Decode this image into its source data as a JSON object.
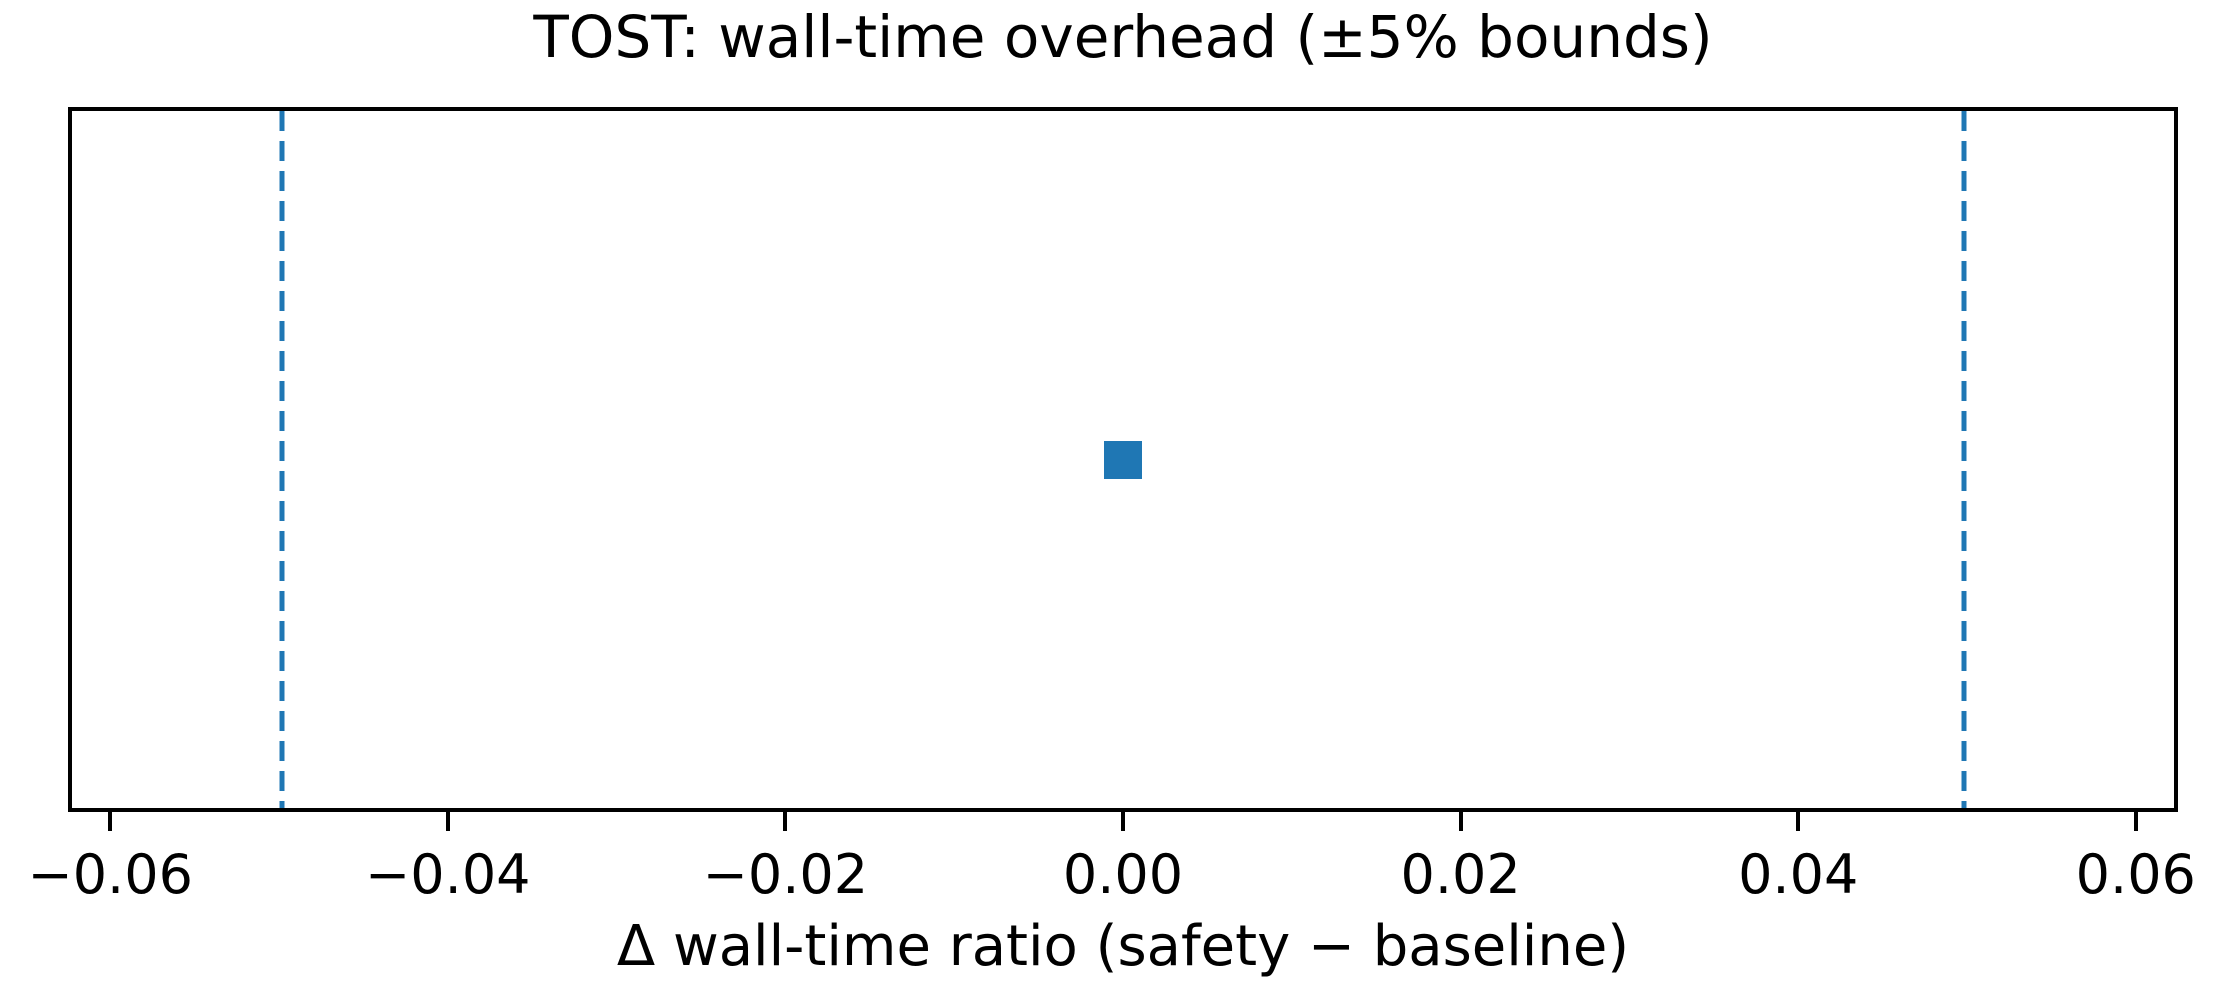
{
  "chart_data": {
    "type": "scatter",
    "title": "TOST: wall-time overhead (±5% bounds)",
    "xlabel": "Δ wall-time ratio (safety − baseline)",
    "ylabel": "",
    "points": [
      {
        "x": 0.0,
        "y": 0.0
      }
    ],
    "marker": "square",
    "marker_color": "#1f77b4",
    "equivalence_bounds": {
      "lower": -0.05,
      "upper": 0.05,
      "line_style": "dashed",
      "line_color": "#1f77b4"
    },
    "xlim": [
      -0.0625,
      0.0625
    ],
    "xticks": [
      -0.06,
      -0.04,
      -0.02,
      0.0,
      0.02,
      0.04,
      0.06
    ],
    "xticklabels": [
      "−0.06",
      "−0.04",
      "−0.02",
      "0.00",
      "0.02",
      "0.04",
      "0.06"
    ],
    "yticks": [],
    "grid": false,
    "legend_position": "none",
    "spine_color": "#000000",
    "text_color": "#000000",
    "background_color": "#ffffff"
  }
}
